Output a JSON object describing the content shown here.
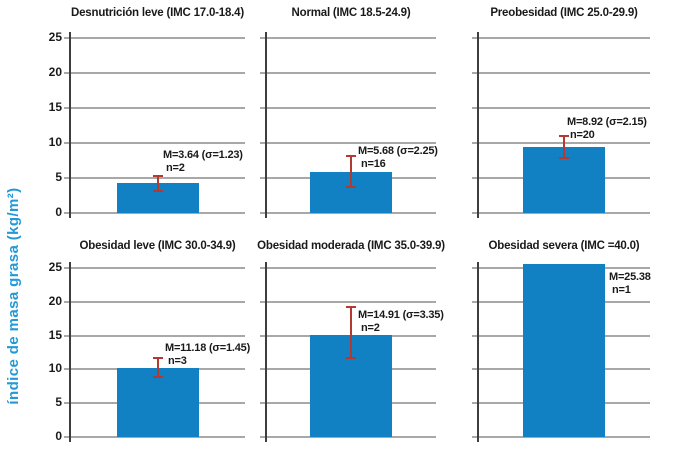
{
  "chart_data": {
    "type": "bar",
    "layout": "2x3 small multiples, shared y-axis",
    "ylabel": "índice de masa grasa (kg/m²)",
    "ylim": [
      0,
      25
    ],
    "yticks": [
      0,
      5,
      10,
      15,
      20,
      25
    ],
    "grid": true,
    "legend": "none",
    "colors": {
      "bar": "#1181c4",
      "error_bar": "#b23a30",
      "gridline": "#a8a8a8",
      "axis_line": "#3d3d3d",
      "ylabel_text": "#2499d6",
      "text": "#1a1a1a"
    },
    "panels": [
      {
        "title": "Desnutrición leve (IMC 17.0-18.4)",
        "M": 3.64,
        "sigma": 1.23,
        "n": 2,
        "bar_display": 4.3,
        "err_display": [
          3.2,
          5.3
        ],
        "label_pos": [
          163,
          149
        ]
      },
      {
        "title": "Normal (IMC 18.5-24.9)",
        "M": 5.68,
        "sigma": 2.25,
        "n": 16,
        "bar_display": 5.9,
        "err_display": [
          3.7,
          8.1
        ],
        "label_pos": [
          358,
          145
        ]
      },
      {
        "title": "Preobesidad (IMC 25.0-29.9)",
        "M": 8.92,
        "sigma": 2.15,
        "n": 20,
        "bar_display": 9.4,
        "err_display": [
          7.9,
          11.0
        ],
        "label_pos": [
          567,
          116
        ]
      },
      {
        "title": "Obesidad leve (IMC 30.0-34.9)",
        "M": 11.18,
        "sigma": 1.45,
        "n": 3,
        "bar_display": 10.2,
        "err_display": [
          8.9,
          11.7
        ],
        "label_pos": [
          165,
          342
        ]
      },
      {
        "title": "Obesidad moderada (IMC 35.0-39.9)",
        "M": 14.91,
        "sigma": 3.35,
        "n": 2,
        "bar_display": 15.1,
        "err_display": [
          11.7,
          19.2
        ],
        "label_pos": [
          358,
          309
        ]
      },
      {
        "title": "Obesidad severa (IMC =40.0)",
        "M": 25.38,
        "sigma": null,
        "n": 1,
        "bar_display": 25.6,
        "err_display": null,
        "label_pos": [
          609,
          271
        ]
      }
    ]
  }
}
